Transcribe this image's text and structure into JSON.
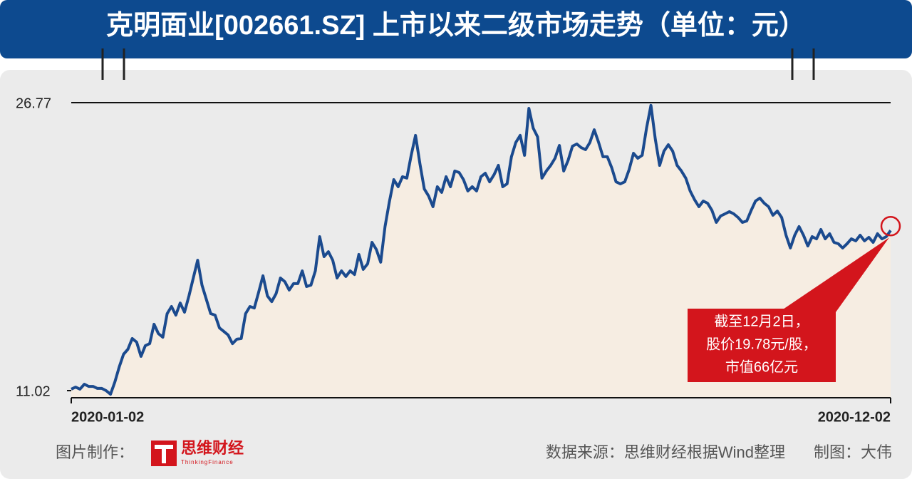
{
  "chart_data": {
    "type": "line",
    "title": "克明面业[002661.SZ] 上市以来二级市场走势（单位：元）",
    "color": "#1b4a8e",
    "area_color": "#f6ede2",
    "categories": [
      "2020-01-02",
      null,
      null,
      null,
      null,
      null,
      null,
      null,
      null,
      null,
      null,
      null,
      null,
      null,
      null,
      null,
      null,
      null,
      null,
      null,
      null,
      null,
      null,
      null,
      null,
      null,
      null,
      null,
      null,
      null,
      null,
      null,
      null,
      null,
      null,
      null,
      null,
      null,
      null,
      null,
      null,
      null,
      null,
      null,
      null,
      null,
      null,
      null,
      null,
      null,
      null,
      null,
      null,
      null,
      null,
      null,
      null,
      null,
      null,
      null,
      null,
      null,
      null,
      null,
      null,
      null,
      null,
      null,
      null,
      null,
      null,
      null,
      null,
      null,
      null,
      null,
      null,
      null,
      null,
      null,
      null,
      null,
      null,
      null,
      null,
      null,
      null,
      null,
      null,
      null,
      null,
      null,
      null,
      null,
      null,
      null,
      null,
      null,
      null,
      null,
      null,
      null,
      null,
      null,
      null,
      null,
      null,
      null,
      null,
      null,
      null,
      null,
      null,
      null,
      null,
      null,
      null,
      null,
      null,
      null,
      null,
      null,
      null,
      null,
      null,
      null,
      null,
      null,
      null,
      null,
      null,
      null,
      null,
      null,
      null,
      null,
      null,
      null,
      null,
      null,
      null,
      null,
      null,
      null,
      null,
      null,
      null,
      null,
      null,
      null,
      null,
      null,
      null,
      null,
      null,
      null,
      null,
      null,
      null,
      null,
      null,
      null,
      null,
      null,
      null,
      null,
      null,
      null,
      null,
      null,
      null,
      null,
      null,
      null,
      null,
      null,
      null,
      null,
      null,
      null,
      null,
      null,
      null,
      null,
      null,
      null,
      null,
      null,
      "2020-12-02"
    ],
    "values": [
      11.1,
      11.21,
      11.1,
      11.37,
      11.25,
      11.25,
      11.14,
      11.14,
      11.02,
      10.82,
      11.49,
      12.31,
      13.01,
      13.28,
      13.87,
      13.67,
      12.89,
      13.48,
      13.59,
      14.65,
      14.14,
      13.94,
      15.23,
      15.62,
      15.15,
      15.81,
      15.31,
      16.2,
      17.18,
      18.15,
      16.79,
      16.01,
      15.23,
      15.15,
      14.45,
      14.26,
      14.06,
      13.59,
      13.83,
      13.87,
      15.23,
      15.62,
      15.54,
      16.4,
      17.3,
      16.2,
      15.89,
      16.32,
      17.18,
      16.98,
      16.52,
      16.87,
      16.87,
      17.57,
      16.71,
      16.79,
      17.57,
      19.44,
      18.35,
      18.62,
      18.15,
      17.18,
      17.57,
      17.26,
      17.57,
      17.37,
      18.47,
      17.65,
      17.96,
      19.13,
      18.74,
      18.04,
      19.99,
      21.35,
      22.56,
      22.17,
      22.72,
      22.64,
      23.89,
      24.98,
      23.42,
      22.05,
      21.66,
      21.08,
      22.17,
      21.86,
      22.72,
      22.17,
      23.03,
      22.95,
      22.56,
      21.94,
      22.17,
      21.94,
      22.72,
      22.91,
      22.44,
      22.83,
      23.34,
      22.17,
      22.33,
      23.81,
      24.59,
      24.98,
      23.89,
      26.46,
      25.37,
      24.9,
      22.64,
      23.03,
      23.34,
      23.73,
      24.43,
      23.03,
      23.61,
      24.39,
      24.51,
      24.31,
      24.2,
      24.59,
      25.29,
      24.59,
      23.81,
      23.81,
      23.22,
      22.44,
      22.33,
      22.44,
      23.11,
      24.0,
      23.73,
      23.89,
      25.37,
      26.62,
      24.78,
      23.34,
      24.12,
      24.47,
      24.12,
      23.34,
      23.03,
      22.64,
      21.94,
      21.47,
      21.08,
      21.39,
      21.27,
      20.88,
      20.22,
      20.57,
      20.69,
      20.81,
      20.69,
      20.49,
      20.22,
      20.3,
      20.88,
      21.39,
      21.55,
      21.27,
      21.08,
      20.61,
      20.84,
      20.49,
      19.52,
      18.82,
      19.52,
      19.99,
      19.52,
      18.93,
      19.44,
      19.32,
      19.83,
      19.32,
      19.6,
      19.13,
      19.05,
      18.82,
      19.05,
      19.32,
      19.21,
      19.52,
      19.21,
      19.4,
      19.13,
      19.6,
      19.32,
      19.44,
      19.78
    ],
    "ylim": [
      10.63,
      26.77
    ],
    "yticks": [
      11.02,
      26.77
    ],
    "annotation": [
      "截至12月2日，",
      "股价19.78元/股，",
      "市值66亿元"
    ],
    "annotation_color": "#d3151c"
  },
  "footer": {
    "credit_label": "图片制作：",
    "logo_cn": "思维财经",
    "logo_en": "ThinkingFinance",
    "source": "数据来源：思维财经根据Wind整理",
    "author": "制图：大伟"
  }
}
